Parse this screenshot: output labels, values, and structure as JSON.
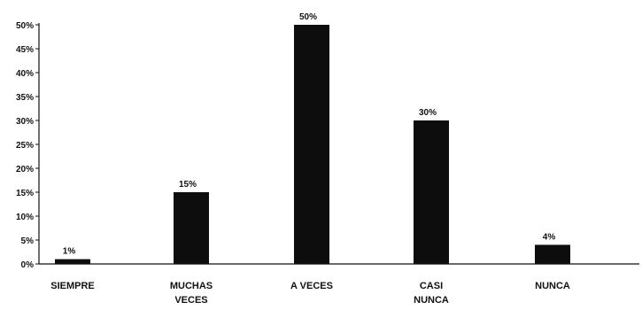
{
  "chart_data": {
    "type": "bar",
    "categories": [
      [
        "SIEMPRE"
      ],
      [
        "MUCHAS",
        "VECES"
      ],
      [
        "A VECES"
      ],
      [
        "CASI",
        "NUNCA"
      ],
      [
        "NUNCA"
      ]
    ],
    "values": [
      1,
      15,
      50,
      30,
      4
    ],
    "data_labels": [
      "1%",
      "15%",
      "50%",
      "30%",
      "4%"
    ],
    "ylim": [
      0,
      50
    ],
    "yticks": [
      0,
      5,
      10,
      15,
      20,
      25,
      30,
      35,
      40,
      45,
      50
    ],
    "ytick_labels": [
      "0%",
      "5%",
      "10%",
      "15%",
      "20%",
      "25%",
      "30%",
      "35%",
      "40%",
      "45%",
      "50%"
    ],
    "bar_color": "#0d0d0d",
    "axis_color": "#111111",
    "grid": false,
    "title": "",
    "xlabel": "",
    "ylabel": ""
  }
}
